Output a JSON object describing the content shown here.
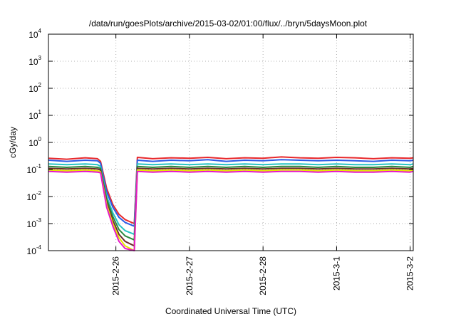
{
  "chart_data": {
    "type": "line",
    "title": "/data/run/goesPlots/archive/2015-03-02/01:00/flux/../bryn/5daysMoon.plot",
    "xlabel": "Coordinated Universal Time (UTC)",
    "ylabel": "cGy/day",
    "y_scale": "log",
    "ylim": [
      0.0001,
      10000
    ],
    "xlim": [
      "2015-02-25T02:00",
      "2015-03-02T01:00"
    ],
    "grid": true,
    "legend": "none",
    "y_ticks": [
      {
        "base": "10",
        "exp": "-4"
      },
      {
        "base": "10",
        "exp": "-3"
      },
      {
        "base": "10",
        "exp": "-2"
      },
      {
        "base": "10",
        "exp": "-1"
      },
      {
        "base": "10",
        "exp": "0"
      },
      {
        "base": "10",
        "exp": "1"
      },
      {
        "base": "10",
        "exp": "2"
      },
      {
        "base": "10",
        "exp": "3"
      },
      {
        "base": "10",
        "exp": "4"
      }
    ],
    "x_ticks": [
      {
        "label": "2015-2-26",
        "date": "2015-02-26T00:00"
      },
      {
        "label": "2015-2-27",
        "date": "2015-02-27T00:00"
      },
      {
        "label": "2015-2-28",
        "date": "2015-02-28T00:00"
      },
      {
        "label": "2015-3-1",
        "date": "2015-03-01T00:00"
      },
      {
        "label": "2015-3-2",
        "date": "2015-03-02T00:00"
      }
    ],
    "series": [
      {
        "color": "#e8282b",
        "x": [
          "2015-02-25T02:00",
          "2015-02-25T08:00",
          "2015-02-25T14:00",
          "2015-02-25T18:00",
          "2015-02-25T19:00",
          "2015-02-25T21:00",
          "2015-02-25T23:00",
          "2015-02-26T01:00",
          "2015-02-26T03:00",
          "2015-02-26T06:00",
          "2015-02-26T07:00",
          "2015-02-26T12:00",
          "2015-02-26T18:00",
          "2015-02-27T00:00",
          "2015-02-27T06:00",
          "2015-02-27T12:00",
          "2015-02-27T18:00",
          "2015-02-28T00:00",
          "2015-02-28T06:00",
          "2015-02-28T12:00",
          "2015-02-28T18:00",
          "2015-03-01T00:00",
          "2015-03-01T06:00",
          "2015-03-01T12:00",
          "2015-03-01T18:00",
          "2015-03-02T00:00",
          "2015-03-02T01:00"
        ],
        "y": [
          0.26,
          0.24,
          0.27,
          0.25,
          0.2,
          0.02,
          0.005,
          0.0022,
          0.0014,
          0.001,
          0.28,
          0.25,
          0.27,
          0.26,
          0.28,
          0.25,
          0.27,
          0.26,
          0.29,
          0.27,
          0.26,
          0.28,
          0.27,
          0.25,
          0.27,
          0.26,
          0.27
        ]
      },
      {
        "color": "#2b5ce6",
        "x": [
          "2015-02-25T02:00",
          "2015-02-25T08:00",
          "2015-02-25T14:00",
          "2015-02-25T18:00",
          "2015-02-25T19:00",
          "2015-02-25T21:00",
          "2015-02-25T23:00",
          "2015-02-26T01:00",
          "2015-02-26T03:00",
          "2015-02-26T06:00",
          "2015-02-26T07:00",
          "2015-02-26T12:00",
          "2015-02-26T18:00",
          "2015-02-27T00:00",
          "2015-02-27T06:00",
          "2015-02-27T12:00",
          "2015-02-27T18:00",
          "2015-02-28T00:00",
          "2015-02-28T06:00",
          "2015-02-28T12:00",
          "2015-02-28T18:00",
          "2015-03-01T00:00",
          "2015-03-01T06:00",
          "2015-03-01T12:00",
          "2015-03-01T18:00",
          "2015-03-02T00:00",
          "2015-03-02T01:00"
        ],
        "y": [
          0.22,
          0.2,
          0.22,
          0.21,
          0.17,
          0.015,
          0.004,
          0.0017,
          0.0011,
          0.0008,
          0.22,
          0.2,
          0.22,
          0.21,
          0.23,
          0.2,
          0.22,
          0.21,
          0.23,
          0.22,
          0.21,
          0.22,
          0.21,
          0.2,
          0.22,
          0.21,
          0.22
        ]
      },
      {
        "color": "#27c4c4",
        "x": [
          "2015-02-25T02:00",
          "2015-02-25T08:00",
          "2015-02-25T14:00",
          "2015-02-25T18:00",
          "2015-02-25T19:00",
          "2015-02-25T21:00",
          "2015-02-25T23:00",
          "2015-02-26T01:00",
          "2015-02-26T03:00",
          "2015-02-26T06:00",
          "2015-02-26T07:00",
          "2015-02-26T12:00",
          "2015-02-26T18:00",
          "2015-02-27T00:00",
          "2015-02-27T06:00",
          "2015-02-27T12:00",
          "2015-02-27T18:00",
          "2015-02-28T00:00",
          "2015-02-28T06:00",
          "2015-02-28T12:00",
          "2015-02-28T18:00",
          "2015-03-01T00:00",
          "2015-03-01T06:00",
          "2015-03-01T12:00",
          "2015-03-01T18:00",
          "2015-03-02T00:00",
          "2015-03-02T01:00"
        ],
        "y": [
          0.16,
          0.15,
          0.16,
          0.15,
          0.13,
          0.01,
          0.0025,
          0.0009,
          0.00055,
          0.0004,
          0.16,
          0.15,
          0.16,
          0.15,
          0.16,
          0.15,
          0.16,
          0.15,
          0.16,
          0.16,
          0.15,
          0.16,
          0.15,
          0.15,
          0.16,
          0.15,
          0.16
        ]
      },
      {
        "color": "#2b8a3e",
        "x": [
          "2015-02-25T02:00",
          "2015-02-25T08:00",
          "2015-02-25T14:00",
          "2015-02-25T18:00",
          "2015-02-25T19:00",
          "2015-02-25T21:00",
          "2015-02-25T23:00",
          "2015-02-26T01:00",
          "2015-02-26T03:00",
          "2015-02-26T06:00",
          "2015-02-26T07:00",
          "2015-02-26T12:00",
          "2015-02-26T18:00",
          "2015-02-27T00:00",
          "2015-02-27T06:00",
          "2015-02-27T12:00",
          "2015-02-27T18:00",
          "2015-02-28T00:00",
          "2015-02-28T06:00",
          "2015-02-28T12:00",
          "2015-02-28T18:00",
          "2015-03-01T00:00",
          "2015-03-01T06:00",
          "2015-03-01T12:00",
          "2015-03-01T18:00",
          "2015-03-02T00:00",
          "2015-03-02T01:00"
        ],
        "y": [
          0.13,
          0.12,
          0.13,
          0.12,
          0.11,
          0.008,
          0.0018,
          0.0006,
          0.00035,
          0.00025,
          0.13,
          0.12,
          0.13,
          0.12,
          0.13,
          0.12,
          0.13,
          0.12,
          0.13,
          0.13,
          0.12,
          0.13,
          0.12,
          0.12,
          0.13,
          0.12,
          0.13
        ]
      },
      {
        "color": "#6b2a2a",
        "x": [
          "2015-02-25T02:00",
          "2015-02-25T08:00",
          "2015-02-25T14:00",
          "2015-02-25T18:00",
          "2015-02-25T19:00",
          "2015-02-25T21:00",
          "2015-02-25T23:00",
          "2015-02-26T01:00",
          "2015-02-26T03:00",
          "2015-02-26T06:00",
          "2015-02-26T07:00",
          "2015-02-26T12:00",
          "2015-02-26T18:00",
          "2015-02-27T00:00",
          "2015-02-27T06:00",
          "2015-02-27T12:00",
          "2015-02-27T18:00",
          "2015-02-28T00:00",
          "2015-02-28T06:00",
          "2015-02-28T12:00",
          "2015-02-28T18:00",
          "2015-03-01T00:00",
          "2015-03-01T06:00",
          "2015-03-01T12:00",
          "2015-03-01T18:00",
          "2015-03-02T00:00",
          "2015-03-02T01:00"
        ],
        "y": [
          0.11,
          0.105,
          0.11,
          0.105,
          0.095,
          0.006,
          0.0013,
          0.0004,
          0.00022,
          0.00015,
          0.11,
          0.105,
          0.11,
          0.105,
          0.11,
          0.105,
          0.11,
          0.105,
          0.11,
          0.11,
          0.105,
          0.11,
          0.105,
          0.105,
          0.11,
          0.105,
          0.11
        ]
      },
      {
        "color": "#e5e600",
        "x": [
          "2015-02-25T02:00",
          "2015-02-25T08:00",
          "2015-02-25T14:00",
          "2015-02-25T18:00",
          "2015-02-25T19:00",
          "2015-02-25T21:00",
          "2015-02-25T23:00",
          "2015-02-26T01:00",
          "2015-02-26T03:00",
          "2015-02-26T06:00",
          "2015-02-26T07:00",
          "2015-02-26T12:00",
          "2015-02-26T18:00",
          "2015-02-27T00:00",
          "2015-02-27T06:00",
          "2015-02-27T12:00",
          "2015-02-27T18:00",
          "2015-02-28T00:00",
          "2015-02-28T06:00",
          "2015-02-28T12:00",
          "2015-02-28T18:00",
          "2015-03-01T00:00",
          "2015-03-01T06:00",
          "2015-03-01T12:00",
          "2015-03-01T18:00",
          "2015-03-02T00:00",
          "2015-03-02T01:00"
        ],
        "y": [
          0.095,
          0.09,
          0.095,
          0.09,
          0.082,
          0.005,
          0.001,
          0.0003,
          0.00015,
          0.0001,
          0.095,
          0.09,
          0.095,
          0.09,
          0.095,
          0.09,
          0.095,
          0.09,
          0.095,
          0.095,
          0.09,
          0.095,
          0.09,
          0.09,
          0.095,
          0.09,
          0.095
        ]
      },
      {
        "color": "#e619c8",
        "x": [
          "2015-02-25T02:00",
          "2015-02-25T08:00",
          "2015-02-25T14:00",
          "2015-02-25T18:00",
          "2015-02-25T19:00",
          "2015-02-25T21:00",
          "2015-02-25T23:00",
          "2015-02-26T01:00",
          "2015-02-26T03:00",
          "2015-02-26T06:00",
          "2015-02-26T07:00",
          "2015-02-26T12:00",
          "2015-02-26T18:00",
          "2015-02-27T00:00",
          "2015-02-27T06:00",
          "2015-02-27T12:00",
          "2015-02-27T18:00",
          "2015-02-28T00:00",
          "2015-02-28T06:00",
          "2015-02-28T12:00",
          "2015-02-28T18:00",
          "2015-03-01T00:00",
          "2015-03-01T06:00",
          "2015-03-01T12:00",
          "2015-03-01T18:00",
          "2015-03-02T00:00",
          "2015-03-02T01:00"
        ],
        "y": [
          0.085,
          0.08,
          0.085,
          0.08,
          0.075,
          0.004,
          0.0008,
          0.00022,
          0.00012,
          0.0001,
          0.085,
          0.08,
          0.085,
          0.08,
          0.085,
          0.08,
          0.085,
          0.08,
          0.085,
          0.085,
          0.08,
          0.085,
          0.08,
          0.08,
          0.085,
          0.08,
          0.085
        ]
      }
    ]
  }
}
